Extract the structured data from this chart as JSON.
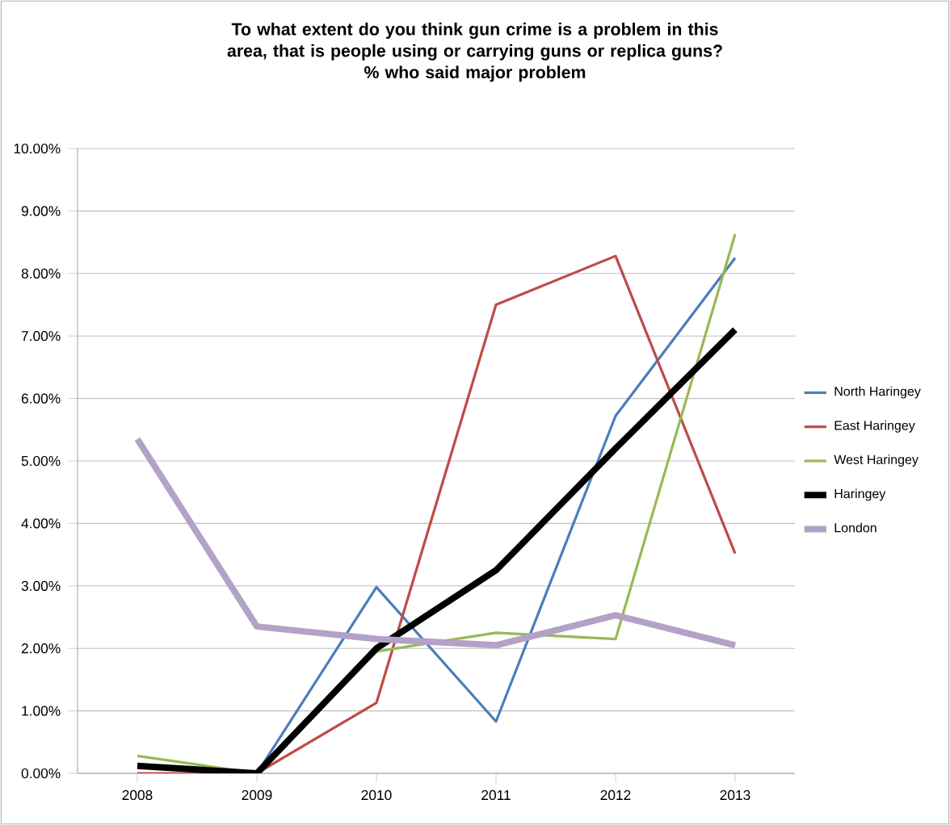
{
  "chart_data": {
    "type": "line",
    "title": "To what extent do you think gun crime is a problem in this area, that is people using or carrying guns or replica guns?",
    "subtitle": "% who said major problem",
    "categories": [
      "2008",
      "2009",
      "2010",
      "2011",
      "2012",
      "2013"
    ],
    "series": [
      {
        "name": "North Haringey",
        "color": "#4a7ebb",
        "values": [
          null,
          0.0,
          2.98,
          0.83,
          5.72,
          8.25
        ]
      },
      {
        "name": "East Haringey",
        "color": "#be4b48",
        "values": [
          0.0,
          0.0,
          1.13,
          7.5,
          8.28,
          3.52
        ]
      },
      {
        "name": "West Haringey",
        "color": "#98b954",
        "values": [
          0.28,
          0.0,
          1.95,
          2.25,
          2.15,
          8.63
        ]
      },
      {
        "name": "Haringey",
        "color": "#000000",
        "values": [
          0.12,
          0.0,
          2.0,
          3.25,
          5.2,
          7.1
        ]
      },
      {
        "name": "London",
        "color": "#b3a2c7",
        "values": [
          5.35,
          2.35,
          2.15,
          2.05,
          2.53,
          2.05
        ]
      }
    ],
    "ylim": [
      0,
      10
    ],
    "yticks": [
      {
        "value": 0,
        "label": "0.00%"
      },
      {
        "value": 1,
        "label": "1.00%"
      },
      {
        "value": 2,
        "label": "2.00%"
      },
      {
        "value": 3,
        "label": "3.00%"
      },
      {
        "value": 4,
        "label": "4.00%"
      },
      {
        "value": 5,
        "label": "5.00%"
      },
      {
        "value": 6,
        "label": "6.00%"
      },
      {
        "value": 7,
        "label": "7.00%"
      },
      {
        "value": 8,
        "label": "8.00%"
      },
      {
        "value": 9,
        "label": "9.00%"
      },
      {
        "value": 10,
        "label": "10.00%"
      }
    ],
    "grid": "y",
    "legend": "right",
    "marker": "none",
    "line_style": "solid"
  }
}
